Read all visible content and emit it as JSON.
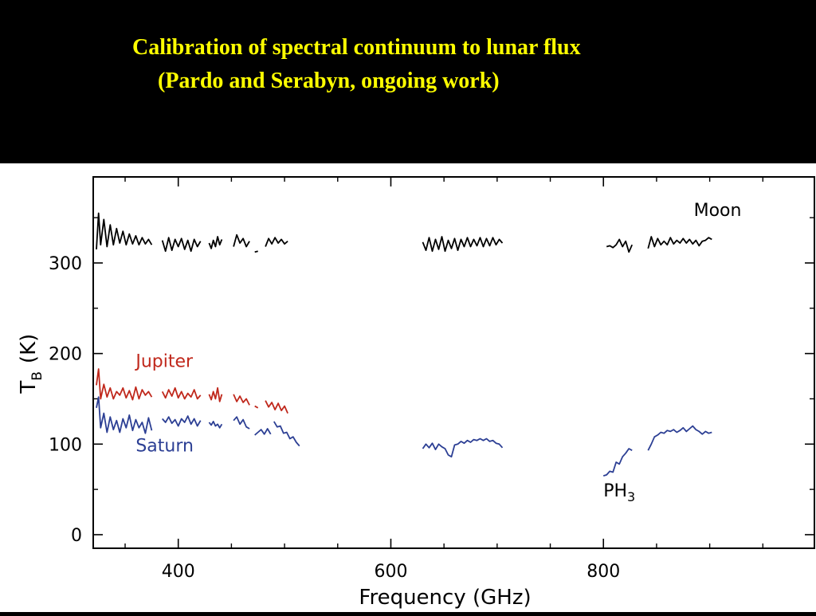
{
  "slide": {
    "title_line1": "Calibration of spectral continuum to lunar flux",
    "title_line2": "(Pardo and Serabyn, ongoing work)",
    "title_color": "#ffff00",
    "background": "#000000"
  },
  "chart_data": {
    "type": "line",
    "title": "",
    "xlabel": "Frequency (GHz)",
    "ylabel_main": "T",
    "ylabel_sub": "B",
    "ylabel_unit": "(K)",
    "xlim": [
      320,
      1000
    ],
    "ylim": [
      -15,
      395
    ],
    "xticks": [
      400,
      600,
      800
    ],
    "xtick_labels": [
      "400",
      "600",
      "800"
    ],
    "xminor": [
      350,
      450,
      500,
      550,
      650,
      700,
      750,
      850,
      900,
      950
    ],
    "yticks": [
      0,
      100,
      200,
      300
    ],
    "ytick_labels": [
      "0",
      "100",
      "200",
      "300"
    ],
    "yminor": [
      50,
      150,
      250,
      350
    ],
    "grid": false,
    "annotations": [
      {
        "text": "Moon",
        "x": 885,
        "y": 352,
        "color": "#000000"
      },
      {
        "text": "Jupiter",
        "x": 360,
        "y": 185,
        "color": "#c0281c"
      },
      {
        "text": "Saturn",
        "x": 360,
        "y": 92,
        "color": "#2c3f94"
      },
      {
        "text": "PH",
        "sub": "3",
        "x": 800,
        "y": 42,
        "color": "#000000"
      }
    ],
    "series": [
      {
        "name": "Moon",
        "color": "#000000",
        "segments": [
          {
            "x": [
              323,
              325,
              327,
              330,
              333,
              336,
              339,
              342,
              345,
              348,
              351,
              354,
              357,
              360,
              363,
              366,
              369,
              372,
              375
            ],
            "y": [
              315,
              355,
              320,
              348,
              318,
              342,
              320,
              338,
              322,
              335,
              320,
              332,
              321,
              330,
              320,
              328,
              321,
              326,
              320
            ]
          },
          {
            "x": [
              385,
              388,
              391,
              394,
              397,
              400,
              403,
              406,
              409,
              412,
              415,
              418,
              421
            ],
            "y": [
              325,
              313,
              328,
              314,
              326,
              318,
              327,
              315,
              325,
              313,
              326,
              318,
              324
            ]
          },
          {
            "x": [
              429,
              431,
              433,
              435,
              437,
              439,
              441
            ],
            "y": [
              322,
              316,
              325,
              318,
              329,
              320,
              326
            ]
          },
          {
            "x": [
              452,
              455,
              458,
              461,
              464,
              467
            ],
            "y": [
              318,
              331,
              322,
              327,
              318,
              324
            ]
          },
          {
            "x": [
              472,
              475
            ],
            "y": [
              312,
              313
            ]
          },
          {
            "x": [
              482,
              485,
              488,
              491,
              494,
              497,
              500,
              503
            ],
            "y": [
              318,
              327,
              321,
              328,
              322,
              326,
              321,
              324
            ]
          },
          {
            "x": [
              630,
              633,
              636,
              639,
              642,
              645,
              648,
              651,
              654,
              657,
              660,
              663,
              666,
              669,
              672,
              675,
              678,
              681,
              684,
              687,
              690,
              693,
              696,
              699,
              702,
              705
            ],
            "y": [
              323,
              314,
              328,
              313,
              326,
              315,
              329,
              313,
              325,
              316,
              327,
              314,
              326,
              318,
              328,
              318,
              326,
              319,
              328,
              318,
              327,
              319,
              328,
              320,
              326,
              322
            ]
          },
          {
            "x": [
              803,
              806,
              809,
              812,
              815,
              818,
              821,
              824,
              827
            ],
            "y": [
              318,
              319,
              317,
              320,
              326,
              318,
              324,
              312,
              320
            ]
          },
          {
            "x": [
              842,
              845,
              848,
              851,
              854,
              857,
              860,
              863,
              866,
              869,
              872,
              875,
              878,
              881,
              884,
              887,
              890,
              893,
              896,
              899,
              902
            ],
            "y": [
              316,
              329,
              318,
              327,
              320,
              324,
              320,
              328,
              321,
              325,
              322,
              327,
              322,
              326,
              321,
              325,
              319,
              324,
              325,
              328,
              326
            ]
          }
        ]
      },
      {
        "name": "Jupiter",
        "color": "#c0281c",
        "segments": [
          {
            "x": [
              323,
              325,
              327,
              330,
              333,
              336,
              339,
              342,
              345,
              348,
              351,
              354,
              357,
              360,
              363,
              366,
              369,
              372,
              375
            ],
            "y": [
              165,
              183,
              150,
              166,
              152,
              162,
              150,
              158,
              154,
              162,
              151,
              159,
              149,
              163,
              150,
              160,
              154,
              158,
              152
            ]
          },
          {
            "x": [
              385,
              388,
              391,
              394,
              397,
              400,
              403,
              406,
              409,
              412,
              415,
              418,
              421
            ],
            "y": [
              158,
              151,
              160,
              153,
              162,
              151,
              158,
              150,
              156,
              152,
              160,
              150,
              154
            ]
          },
          {
            "x": [
              429,
              431,
              433,
              435,
              437,
              439,
              441
            ],
            "y": [
              155,
              149,
              158,
              150,
              162,
              147,
              155
            ]
          },
          {
            "x": [
              452,
              455,
              458,
              461,
              464,
              467
            ],
            "y": [
              155,
              147,
              153,
              146,
              150,
              143
            ]
          },
          {
            "x": [
              472,
              475
            ],
            "y": [
              142,
              140
            ]
          },
          {
            "x": [
              482,
              485,
              488,
              491,
              494,
              497,
              500,
              503
            ],
            "y": [
              148,
              141,
              146,
              138,
              145,
              137,
              142,
              134
            ]
          }
        ]
      },
      {
        "name": "Saturn",
        "color": "#2c3f94",
        "segments": [
          {
            "x": [
              323,
              325,
              327,
              330,
              333,
              336,
              339,
              342,
              345,
              348,
              351,
              354,
              357,
              360,
              363,
              366,
              369,
              372,
              375
            ],
            "y": [
              140,
              152,
              118,
              134,
              113,
              130,
              116,
              126,
              113,
              128,
              118,
              132,
              115,
              127,
              118,
              124,
              112,
              129,
              115
            ]
          },
          {
            "x": [
              385,
              388,
              391,
              394,
              397,
              400,
              403,
              406,
              409,
              412,
              415,
              418,
              421
            ],
            "y": [
              128,
              124,
              130,
              123,
              127,
              120,
              128,
              124,
              131,
              122,
              128,
              120,
              126
            ]
          },
          {
            "x": [
              429,
              431,
              433,
              435,
              437,
              439,
              441
            ],
            "y": [
              124,
              121,
              125,
              120,
              122,
              118,
              122
            ]
          },
          {
            "x": [
              452,
              455,
              458,
              461,
              464,
              467
            ],
            "y": [
              126,
              130,
              122,
              127,
              119,
              117
            ]
          },
          {
            "x": [
              472,
              475,
              478,
              481,
              484,
              487
            ],
            "y": [
              110,
              113,
              116,
              111,
              117,
              111
            ]
          },
          {
            "x": [
              490,
              493,
              496,
              499,
              502,
              505,
              508,
              511,
              514
            ],
            "y": [
              125,
              119,
              120,
              112,
              113,
              106,
              108,
              102,
              98
            ]
          },
          {
            "x": [
              630,
              633,
              636,
              639,
              642,
              645,
              648,
              651,
              654,
              657,
              660,
              663,
              666,
              669,
              672,
              675,
              678,
              681,
              684,
              687,
              690,
              693,
              696,
              699,
              702,
              705
            ],
            "y": [
              95,
              100,
              96,
              101,
              94,
              100,
              97,
              95,
              88,
              86,
              99,
              100,
              103,
              101,
              104,
              102,
              105,
              104,
              106,
              104,
              106,
              103,
              104,
              101,
              100,
              96
            ]
          },
          {
            "x": [
              800,
              803,
              806,
              809,
              812,
              815,
              818,
              821,
              824,
              827
            ],
            "y": [
              65,
              66,
              70,
              69,
              80,
              78,
              86,
              90,
              95,
              93
            ]
          },
          {
            "x": [
              842,
              845,
              848,
              851,
              854,
              857,
              860,
              863,
              866,
              869,
              872,
              875,
              878,
              881,
              884,
              887,
              890,
              893,
              896,
              899,
              902
            ],
            "y": [
              93,
              100,
              108,
              110,
              113,
              112,
              115,
              114,
              116,
              113,
              115,
              118,
              114,
              117,
              120,
              116,
              114,
              111,
              114,
              112,
              113
            ]
          }
        ]
      }
    ]
  }
}
